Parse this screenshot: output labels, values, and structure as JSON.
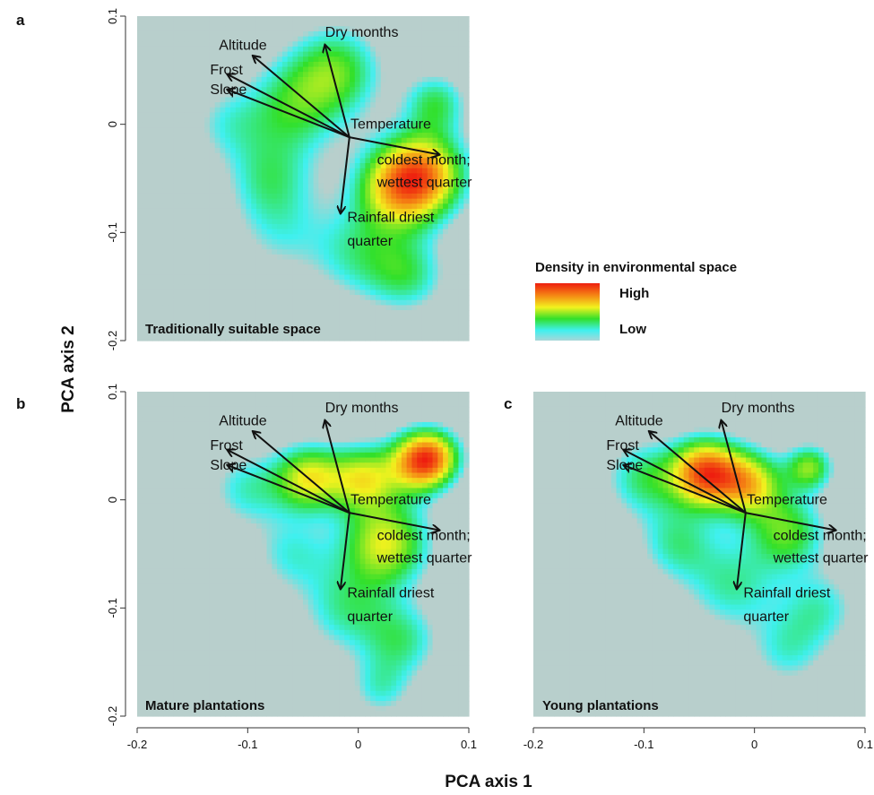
{
  "chart_data": {
    "type": "heatmap",
    "xlabel": "PCA axis 1",
    "ylabel": "PCA axis 2",
    "xlim": [
      -0.2,
      0.1
    ],
    "ylim": [
      -0.2,
      0.1
    ],
    "x_ticks": [
      "-0.2",
      "-0.1",
      "0",
      "0.1"
    ],
    "y_ticks": [
      "-0.2",
      "-0.1",
      "0",
      "0.1"
    ],
    "colors": {
      "background": "#b8cfcc",
      "low": "#3ff0ef",
      "mid_low": "#32e02a",
      "mid": "#f2f21e",
      "high": "#ee1e0f"
    },
    "legend": {
      "title": "Density in environmental space",
      "high_label": "High",
      "low_label": "Low",
      "placement": "right"
    },
    "variables": [
      {
        "label": "Altitude",
        "x": -0.095,
        "y": 0.063
      },
      {
        "label": "Dry months",
        "x": -0.03,
        "y": 0.073
      },
      {
        "label": "Frost",
        "x": -0.118,
        "y": 0.046
      },
      {
        "label": "Slope",
        "x": -0.118,
        "y": 0.032
      },
      {
        "label": "Temperature",
        "x": 0.073,
        "y": -0.028
      },
      {
        "label": "Rainfall driest quarter",
        "x": -0.016,
        "y": -0.082
      }
    ],
    "variable_origin": {
      "x": -0.008,
      "y": -0.012
    },
    "annotations": [
      {
        "label": "Temperature",
        "x": -0.007,
        "y": -0.004
      },
      {
        "label": "coldest month;",
        "x": 0.017,
        "y": -0.037
      },
      {
        "label": "wettest quarter",
        "x": 0.017,
        "y": -0.058
      },
      {
        "label": "Rainfall driest",
        "x": -0.01,
        "y": -0.09
      },
      {
        "label": "quarter",
        "x": -0.01,
        "y": -0.112
      },
      {
        "label": "Altitude",
        "x": -0.126,
        "y": 0.069
      },
      {
        "label": "Dry months",
        "x": -0.03,
        "y": 0.081
      },
      {
        "label": "Frost",
        "x": -0.134,
        "y": 0.046
      },
      {
        "label": "Slope",
        "x": -0.134,
        "y": 0.028
      }
    ],
    "panels": [
      {
        "id": "a",
        "letter": "a",
        "caption": "Traditionally suitable space",
        "density_peaks": [
          {
            "x": 0.06,
            "y": -0.045,
            "weight": 1.0,
            "spread": 0.028
          },
          {
            "x": 0.035,
            "y": -0.06,
            "weight": 0.85,
            "spread": 0.028
          },
          {
            "x": 0.07,
            "y": 0.02,
            "weight": 0.55,
            "spread": 0.02
          },
          {
            "x": -0.02,
            "y": 0.05,
            "weight": 0.65,
            "spread": 0.03
          },
          {
            "x": -0.06,
            "y": 0.015,
            "weight": 0.55,
            "spread": 0.032
          },
          {
            "x": -0.12,
            "y": 0.0,
            "weight": 0.3,
            "spread": 0.025
          },
          {
            "x": 0.0,
            "y": -0.12,
            "weight": 0.45,
            "spread": 0.03
          },
          {
            "x": 0.045,
            "y": -0.14,
            "weight": 0.5,
            "spread": 0.025
          },
          {
            "x": -0.07,
            "y": -0.1,
            "weight": 0.3,
            "spread": 0.03
          },
          {
            "x": -0.08,
            "y": -0.05,
            "weight": 0.45,
            "spread": 0.028
          }
        ]
      },
      {
        "id": "b",
        "letter": "b",
        "caption": "Mature plantations",
        "density_peaks": [
          {
            "x": 0.055,
            "y": 0.035,
            "weight": 1.0,
            "spread": 0.02
          },
          {
            "x": -0.045,
            "y": 0.02,
            "weight": 0.85,
            "spread": 0.022
          },
          {
            "x": 0.005,
            "y": 0.02,
            "weight": 0.8,
            "spread": 0.022
          },
          {
            "x": 0.025,
            "y": -0.04,
            "weight": 0.85,
            "spread": 0.028
          },
          {
            "x": 0.07,
            "y": 0.04,
            "weight": 0.6,
            "spread": 0.018
          },
          {
            "x": -0.1,
            "y": 0.01,
            "weight": 0.4,
            "spread": 0.025
          },
          {
            "x": -0.01,
            "y": -0.1,
            "weight": 0.45,
            "spread": 0.03
          },
          {
            "x": 0.04,
            "y": -0.13,
            "weight": 0.45,
            "spread": 0.025
          },
          {
            "x": 0.02,
            "y": -0.175,
            "weight": 0.35,
            "spread": 0.02
          },
          {
            "x": -0.06,
            "y": -0.05,
            "weight": 0.35,
            "spread": 0.025
          }
        ]
      },
      {
        "id": "c",
        "letter": "c",
        "caption": "Young plantations",
        "density_peaks": [
          {
            "x": -0.045,
            "y": 0.025,
            "weight": 1.0,
            "spread": 0.022
          },
          {
            "x": -0.005,
            "y": 0.015,
            "weight": 0.72,
            "spread": 0.022
          },
          {
            "x": 0.05,
            "y": 0.03,
            "weight": 0.55,
            "spread": 0.015
          },
          {
            "x": 0.03,
            "y": -0.03,
            "weight": 0.5,
            "spread": 0.025
          },
          {
            "x": -0.1,
            "y": 0.02,
            "weight": 0.4,
            "spread": 0.025
          },
          {
            "x": -0.02,
            "y": -0.08,
            "weight": 0.35,
            "spread": 0.03
          },
          {
            "x": 0.03,
            "y": -0.14,
            "weight": 0.28,
            "spread": 0.025
          },
          {
            "x": 0.06,
            "y": -0.1,
            "weight": 0.3,
            "spread": 0.025
          },
          {
            "x": -0.07,
            "y": -0.04,
            "weight": 0.35,
            "spread": 0.025
          }
        ]
      }
    ]
  }
}
